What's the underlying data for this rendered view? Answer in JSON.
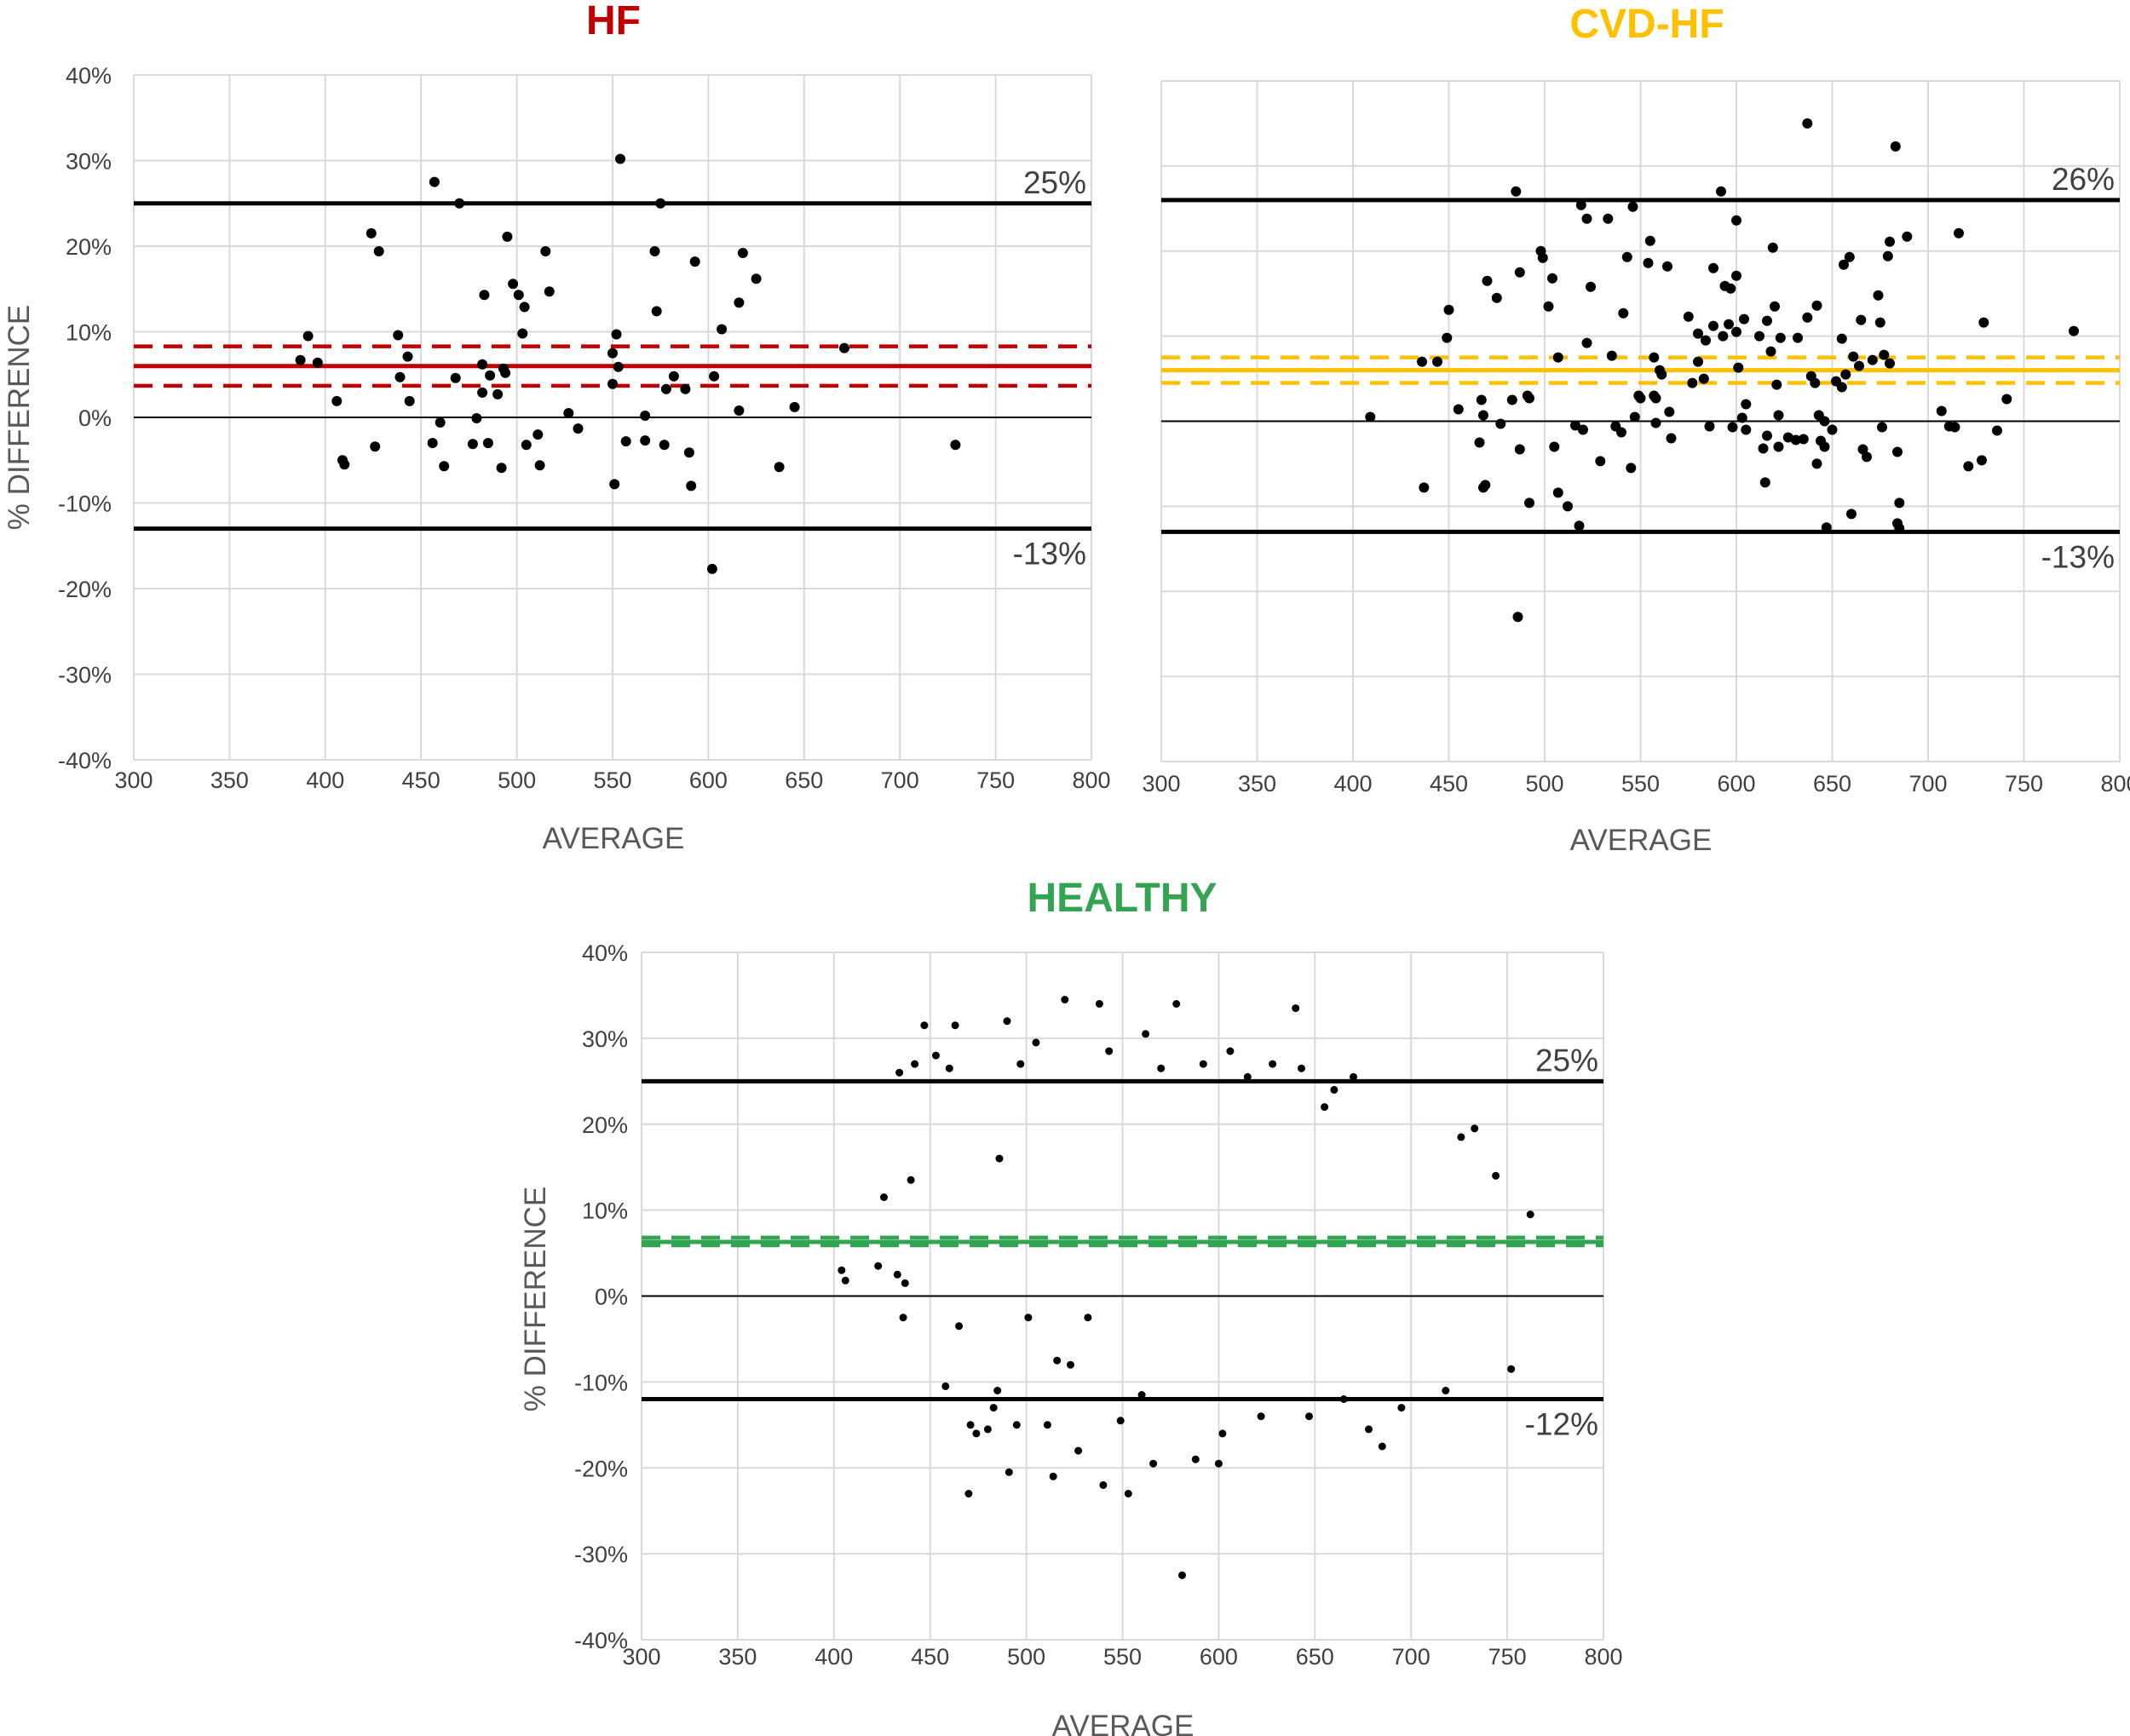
{
  "chart_data": [
    {
      "id": "hf",
      "type": "scatter",
      "title": "HF",
      "title_color": "#c00000",
      "xlabel": "AVERAGE",
      "ylabel": "% DIFFERENCE",
      "xlim": [
        300,
        800
      ],
      "ylim": [
        -40,
        40
      ],
      "x_ticks": [
        "300",
        "350",
        "400",
        "450",
        "500",
        "550",
        "600",
        "650",
        "700",
        "750",
        "800"
      ],
      "y_ticks": [
        "-40%",
        "-30%",
        "-20%",
        "-10%",
        "0%",
        "10%",
        "20%",
        "30%",
        "40%"
      ],
      "show_y_labels": true,
      "grid": true,
      "upper_loa": 25,
      "upper_loa_label": "25%",
      "lower_loa": -13,
      "lower_loa_label": "-13%",
      "mean": 6,
      "ci": [
        3.7,
        8.3
      ],
      "mean_color": "#c00000",
      "points": [
        [
          387,
          6.7
        ],
        [
          391,
          9.5
        ],
        [
          396,
          6.4
        ],
        [
          406,
          1.9
        ],
        [
          409,
          -5
        ],
        [
          410,
          -5.5
        ],
        [
          424,
          21.5
        ],
        [
          426,
          -3.4
        ],
        [
          428,
          19.4
        ],
        [
          438,
          9.6
        ],
        [
          439,
          4.7
        ],
        [
          443,
          7.1
        ],
        [
          444,
          1.9
        ],
        [
          456,
          -3
        ],
        [
          457,
          27.5
        ],
        [
          460,
          -0.6
        ],
        [
          462,
          -5.7
        ],
        [
          468,
          4.6
        ],
        [
          470,
          25
        ],
        [
          477,
          -3.1
        ],
        [
          479,
          -0.1
        ],
        [
          482,
          6.2
        ],
        [
          482,
          2.9
        ],
        [
          483,
          14.3
        ],
        [
          485,
          -3
        ],
        [
          486,
          4.9
        ],
        [
          490,
          2.7
        ],
        [
          492,
          -5.9
        ],
        [
          493,
          5.7
        ],
        [
          494,
          5.2
        ],
        [
          495,
          21.1
        ],
        [
          498,
          15.6
        ],
        [
          501,
          14.3
        ],
        [
          503,
          9.8
        ],
        [
          504,
          12.9
        ],
        [
          505,
          -3.2
        ],
        [
          511,
          -2
        ],
        [
          512,
          -5.6
        ],
        [
          515,
          19.4
        ],
        [
          517,
          14.7
        ],
        [
          527,
          0.5
        ],
        [
          532,
          -1.3
        ],
        [
          550,
          7.5
        ],
        [
          550,
          3.9
        ],
        [
          551,
          -7.8
        ],
        [
          552,
          9.7
        ],
        [
          553,
          5.9
        ],
        [
          554,
          30.2
        ],
        [
          557,
          -2.8
        ],
        [
          567,
          -2.7
        ],
        [
          567,
          0.2
        ],
        [
          572,
          19.4
        ],
        [
          573,
          12.4
        ],
        [
          575,
          25
        ],
        [
          577,
          -3.2
        ],
        [
          578,
          3.3
        ],
        [
          582,
          4.8
        ],
        [
          588,
          3.3
        ],
        [
          590,
          -4.1
        ],
        [
          591,
          -8
        ],
        [
          593,
          18.2
        ],
        [
          602,
          -17.7
        ],
        [
          603,
          4.8
        ],
        [
          607,
          10.3
        ],
        [
          616,
          13.4
        ],
        [
          616,
          0.8
        ],
        [
          618,
          19.2
        ],
        [
          625,
          16.2
        ],
        [
          637,
          -5.8
        ],
        [
          645,
          1.2
        ],
        [
          671,
          8.1
        ],
        [
          729,
          -3.2
        ]
      ]
    },
    {
      "id": "cvd",
      "type": "scatter",
      "title": "CVD-HF",
      "title_color": "#ffc000",
      "xlabel": "AVERAGE",
      "ylabel": "",
      "xlim": [
        300,
        800
      ],
      "ylim": [
        -40,
        40
      ],
      "x_ticks": [
        "300",
        "350",
        "400",
        "450",
        "500",
        "550",
        "600",
        "650",
        "700",
        "750",
        "800"
      ],
      "y_ticks": [],
      "show_y_labels": false,
      "grid": true,
      "upper_loa": 26,
      "upper_loa_label": "26%",
      "lower_loa": -13,
      "lower_loa_label": "-13%",
      "mean": 6,
      "ci": [
        4.5,
        7.5
      ],
      "mean_color": "#ffc000",
      "points": [
        [
          409,
          0.5
        ],
        [
          436,
          7
        ],
        [
          437,
          -7.8
        ],
        [
          444,
          7
        ],
        [
          449,
          9.8
        ],
        [
          450,
          13.1
        ],
        [
          455,
          1.4
        ],
        [
          466,
          -2.5
        ],
        [
          467,
          2.5
        ],
        [
          468,
          0.7
        ],
        [
          468,
          -7.8
        ],
        [
          469,
          -7.5
        ],
        [
          470,
          16.5
        ],
        [
          475,
          14.5
        ],
        [
          477,
          -0.3
        ],
        [
          483,
          2.5
        ],
        [
          485,
          27
        ],
        [
          486,
          -23
        ],
        [
          487,
          17.5
        ],
        [
          487,
          -3.3
        ],
        [
          491,
          3
        ],
        [
          492,
          -9.6
        ],
        [
          492,
          2.7
        ],
        [
          498,
          20
        ],
        [
          499,
          19.2
        ],
        [
          502,
          13.5
        ],
        [
          504,
          16.8
        ],
        [
          505,
          -3
        ],
        [
          507,
          7.5
        ],
        [
          507,
          -8.4
        ],
        [
          512,
          -10
        ],
        [
          516,
          -0.5
        ],
        [
          518,
          -12.3
        ],
        [
          519,
          25.4
        ],
        [
          520,
          -1
        ],
        [
          522,
          9.2
        ],
        [
          522,
          23.8
        ],
        [
          524,
          15.8
        ],
        [
          529,
          -4.7
        ],
        [
          533,
          23.8
        ],
        [
          535,
          7.7
        ],
        [
          537,
          -0.6
        ],
        [
          540,
          -1.3
        ],
        [
          541,
          12.7
        ],
        [
          543,
          19.3
        ],
        [
          545,
          -5.5
        ],
        [
          546,
          25.2
        ],
        [
          547,
          0.5
        ],
        [
          549,
          3
        ],
        [
          550,
          2.7
        ],
        [
          554,
          18.6
        ],
        [
          555,
          21.2
        ],
        [
          557,
          3
        ],
        [
          557,
          7.5
        ],
        [
          558,
          -0.2
        ],
        [
          558,
          2.7
        ],
        [
          560,
          6
        ],
        [
          561,
          5.5
        ],
        [
          564,
          18.2
        ],
        [
          565,
          1.1
        ],
        [
          566,
          -2
        ],
        [
          575,
          12.3
        ],
        [
          577,
          4.5
        ],
        [
          580,
          10.3
        ],
        [
          580,
          7
        ],
        [
          583,
          5
        ],
        [
          584,
          9.5
        ],
        [
          586,
          -0.6
        ],
        [
          588,
          18
        ],
        [
          588,
          11.2
        ],
        [
          592,
          27
        ],
        [
          593,
          10
        ],
        [
          594,
          15.9
        ],
        [
          596,
          11.4
        ],
        [
          597,
          15.6
        ],
        [
          598,
          -0.7
        ],
        [
          600,
          23.6
        ],
        [
          600,
          17.1
        ],
        [
          600,
          10.5
        ],
        [
          601,
          6.3
        ],
        [
          603,
          0.4
        ],
        [
          604,
          12
        ],
        [
          605,
          -1
        ],
        [
          605,
          2
        ],
        [
          612,
          10
        ],
        [
          614,
          -3.2
        ],
        [
          615,
          -7.2
        ],
        [
          616,
          11.8
        ],
        [
          616,
          -1.7
        ],
        [
          618,
          8.2
        ],
        [
          619,
          20.4
        ],
        [
          620,
          13.5
        ],
        [
          621,
          4.3
        ],
        [
          622,
          -3
        ],
        [
          622,
          0.7
        ],
        [
          623,
          9.8
        ],
        [
          627,
          -1.9
        ],
        [
          631,
          -2.2
        ],
        [
          632,
          9.8
        ],
        [
          635,
          -2.1
        ],
        [
          637,
          35
        ],
        [
          637,
          12.2
        ],
        [
          639,
          5.3
        ],
        [
          641,
          4.5
        ],
        [
          642,
          13.6
        ],
        [
          642,
          -5
        ],
        [
          643,
          0.7
        ],
        [
          644,
          -2.3
        ],
        [
          646,
          -3
        ],
        [
          646,
          0
        ],
        [
          647,
          -12.5
        ],
        [
          650,
          -1
        ],
        [
          652,
          4.7
        ],
        [
          655,
          4
        ],
        [
          655,
          9.7
        ],
        [
          656,
          18.4
        ],
        [
          657,
          5.5
        ],
        [
          659,
          19.3
        ],
        [
          660,
          -10.9
        ],
        [
          661,
          7.6
        ],
        [
          664,
          6.5
        ],
        [
          665,
          11.9
        ],
        [
          666,
          -3.3
        ],
        [
          668,
          -4.2
        ],
        [
          671,
          7.2
        ],
        [
          674,
          14.8
        ],
        [
          675,
          11.6
        ],
        [
          676,
          -0.7
        ],
        [
          677,
          7.8
        ],
        [
          679,
          19.4
        ],
        [
          680,
          6.8
        ],
        [
          680,
          21.1
        ],
        [
          683,
          32.3
        ],
        [
          684,
          -12
        ],
        [
          684,
          -3.6
        ],
        [
          685,
          -12.6
        ],
        [
          685,
          -9.6
        ],
        [
          689,
          21.7
        ],
        [
          707,
          1.2
        ],
        [
          711,
          -0.6
        ],
        [
          714,
          -0.7
        ],
        [
          716,
          22.1
        ],
        [
          721,
          -5.3
        ],
        [
          728,
          -4.6
        ],
        [
          729,
          11.6
        ],
        [
          736,
          -1.1
        ],
        [
          741,
          2.6
        ],
        [
          776,
          10.6
        ]
      ]
    },
    {
      "id": "healthy",
      "type": "scatter",
      "title": "HEALTHY",
      "title_color": "#33a452",
      "xlabel": "AVERAGE",
      "ylabel": "% DIFFERENCE",
      "xlim": [
        300,
        800
      ],
      "ylim": [
        -40,
        40
      ],
      "x_ticks": [
        "300",
        "350",
        "400",
        "450",
        "500",
        "550",
        "600",
        "650",
        "700",
        "750",
        "800"
      ],
      "y_ticks": [
        "-40%",
        "-30%",
        "-20%",
        "-10%",
        "0%",
        "10%",
        "20%",
        "30%",
        "40%"
      ],
      "show_y_labels": true,
      "grid": true,
      "upper_loa": 25,
      "upper_loa_label": "25%",
      "lower_loa": -12,
      "lower_loa_label": "-12%",
      "mean": 6.3,
      "ci": [
        5.9,
        6.8
      ],
      "mean_color": "#33a452",
      "points": [
        [
          404,
          3
        ],
        [
          406,
          1.8
        ],
        [
          423,
          3.5
        ],
        [
          426,
          11.5
        ],
        [
          433,
          2.5
        ],
        [
          434,
          26
        ],
        [
          436,
          -2.5
        ],
        [
          437,
          1.5
        ],
        [
          440,
          13.5
        ],
        [
          442,
          27
        ],
        [
          447,
          31.5
        ],
        [
          453,
          28
        ],
        [
          458,
          -10.5
        ],
        [
          460,
          26.5
        ],
        [
          463,
          31.5
        ],
        [
          465,
          -3.5
        ],
        [
          470,
          -23
        ],
        [
          471,
          -15
        ],
        [
          474,
          -16
        ],
        [
          480,
          -15.5
        ],
        [
          483,
          -13
        ],
        [
          485,
          -11
        ],
        [
          486,
          16
        ],
        [
          490,
          32
        ],
        [
          491,
          -20.5
        ],
        [
          495,
          -15
        ],
        [
          497,
          27
        ],
        [
          501,
          -2.5
        ],
        [
          505,
          29.5
        ],
        [
          511,
          -15
        ],
        [
          514,
          -21
        ],
        [
          516,
          -7.5
        ],
        [
          520,
          34.5
        ],
        [
          523,
          -8
        ],
        [
          527,
          -18
        ],
        [
          532,
          -2.5
        ],
        [
          538,
          34
        ],
        [
          540,
          -22
        ],
        [
          543,
          28.5
        ],
        [
          549,
          -14.5
        ],
        [
          553,
          -23
        ],
        [
          560,
          -11.5
        ],
        [
          562,
          30.5
        ],
        [
          566,
          -19.5
        ],
        [
          570,
          26.5
        ],
        [
          578,
          34
        ],
        [
          581,
          -32.5
        ],
        [
          588,
          -19
        ],
        [
          592,
          27
        ],
        [
          600,
          -19.5
        ],
        [
          602,
          -16
        ],
        [
          606,
          28.5
        ],
        [
          615,
          25.5
        ],
        [
          622,
          -14
        ],
        [
          628,
          27
        ],
        [
          640,
          33.5
        ],
        [
          643,
          26.5
        ],
        [
          647,
          -14
        ],
        [
          655,
          22
        ],
        [
          660,
          24
        ],
        [
          665,
          -12
        ],
        [
          670,
          25.5
        ],
        [
          678,
          -15.5
        ],
        [
          685,
          -17.5
        ],
        [
          695,
          -13
        ],
        [
          718,
          -11
        ],
        [
          726,
          18.5
        ],
        [
          733,
          19.5
        ],
        [
          744,
          14
        ],
        [
          752,
          -8.5
        ],
        [
          762,
          9.5
        ]
      ]
    }
  ]
}
